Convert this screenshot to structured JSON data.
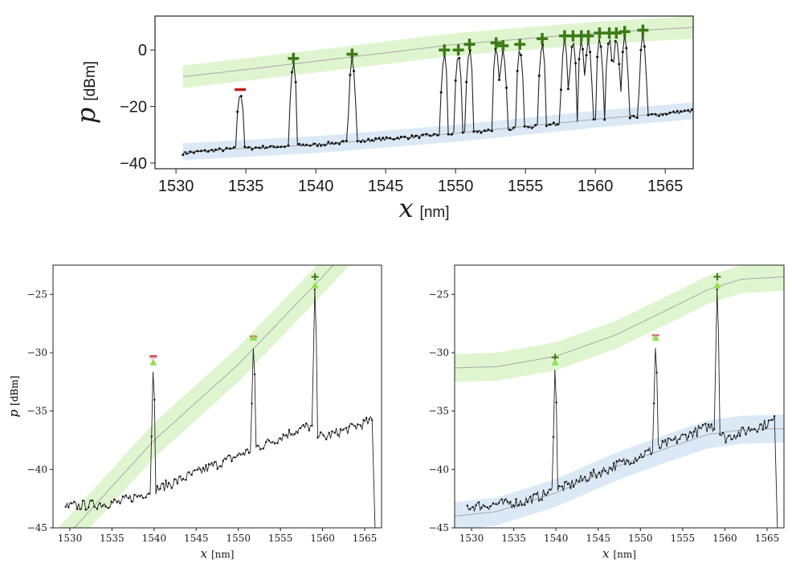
{
  "chart_data": [
    {
      "type": "line",
      "panel": "top",
      "xlabel_symbol": "x",
      "xlabel_unit": "[nm]",
      "ylabel_symbol": "p",
      "ylabel_unit": "[dBm]",
      "xlim": [
        1528.5,
        1567
      ],
      "ylim": [
        -42,
        12
      ],
      "xticks": [
        1530,
        1535,
        1540,
        1545,
        1550,
        1555,
        1560,
        1565
      ],
      "yticks": [
        0,
        -20,
        -40
      ],
      "grid": false,
      "upper_band": {
        "x": [
          1530.5,
          1540,
          1550,
          1560,
          1567
        ],
        "center": [
          -9.5,
          -4,
          2,
          6,
          8
        ],
        "halfwidth": 4,
        "color": "#dff5cf"
      },
      "lower_band": {
        "x": [
          1530.5,
          1540,
          1550,
          1560,
          1567
        ],
        "center": [
          -36,
          -33.5,
          -29.5,
          -24.5,
          -21.5
        ],
        "halfwidth": 3,
        "color": "#dbe9f7"
      },
      "baseline": {
        "x": [
          1530.5,
          1534,
          1540,
          1550,
          1560,
          1567
        ],
        "y": [
          -36.5,
          -35,
          -33.5,
          -29.5,
          -25,
          -21.5
        ]
      },
      "peaks": [
        {
          "x": 1534.6,
          "y": -14,
          "marker": "minus",
          "color": "#c0201e"
        },
        {
          "x": 1538.4,
          "y": -3,
          "marker": "plus",
          "color": "#3b7a17"
        },
        {
          "x": 1542.6,
          "y": -1.5,
          "marker": "plus",
          "color": "#3b7a17"
        },
        {
          "x": 1549.2,
          "y": 0,
          "marker": "plus",
          "color": "#3b7a17"
        },
        {
          "x": 1550.2,
          "y": 0,
          "marker": "plus",
          "color": "#3b7a17"
        },
        {
          "x": 1551.0,
          "y": 2,
          "marker": "plus",
          "color": "#3b7a17"
        },
        {
          "x": 1552.9,
          "y": 2.5,
          "marker": "plus",
          "color": "#3b7a17"
        },
        {
          "x": 1553.4,
          "y": 1.5,
          "marker": "plus",
          "color": "#3b7a17"
        },
        {
          "x": 1554.6,
          "y": 2,
          "marker": "plus",
          "color": "#3b7a17"
        },
        {
          "x": 1556.2,
          "y": 4,
          "marker": "plus",
          "color": "#3b7a17"
        },
        {
          "x": 1557.8,
          "y": 5,
          "marker": "plus",
          "color": "#3b7a17"
        },
        {
          "x": 1558.4,
          "y": 5,
          "marker": "plus",
          "color": "#3b7a17"
        },
        {
          "x": 1559.0,
          "y": 5,
          "marker": "plus",
          "color": "#3b7a17"
        },
        {
          "x": 1559.5,
          "y": 5,
          "marker": "plus",
          "color": "#3b7a17"
        },
        {
          "x": 1560.3,
          "y": 6,
          "marker": "plus",
          "color": "#3b7a17"
        },
        {
          "x": 1561.0,
          "y": 6,
          "marker": "plus",
          "color": "#3b7a17"
        },
        {
          "x": 1561.5,
          "y": 6,
          "marker": "plus",
          "color": "#3b7a17"
        },
        {
          "x": 1562.1,
          "y": 6.5,
          "marker": "plus",
          "color": "#3b7a17"
        },
        {
          "x": 1563.4,
          "y": 7,
          "marker": "plus",
          "color": "#3b7a17"
        }
      ]
    },
    {
      "type": "line",
      "panel": "bottom-left",
      "xlabel_symbol": "x",
      "xlabel_unit": "[nm]",
      "ylabel_symbol": "p",
      "ylabel_unit": "[dBm]",
      "xlim": [
        1528,
        1567
      ],
      "ylim": [
        -45,
        -22.5
      ],
      "xticks": [
        1530,
        1535,
        1540,
        1545,
        1550,
        1555,
        1560,
        1565
      ],
      "yticks": [
        -25,
        -30,
        -35,
        -40,
        -45
      ],
      "grid": false,
      "upper_band": {
        "x": [
          1528,
          1540,
          1550,
          1560,
          1567
        ],
        "center": [
          -47,
          -37.5,
          -31,
          -23.5,
          -18
        ],
        "halfwidth": 1.5,
        "color": "#dff5cf"
      },
      "baseline": {
        "x": [
          1529.5,
          1536,
          1541,
          1550,
          1557,
          1558.5,
          1560,
          1566
        ],
        "y": [
          -43.2,
          -42.8,
          -41.5,
          -38.8,
          -36.6,
          -36.3,
          -37.3,
          -35.8
        ]
      },
      "end_drop": {
        "x": 1566.3,
        "y": -45
      },
      "peaks": [
        {
          "x": 1539.9,
          "y": -30.3,
          "marker": "minus",
          "color": "#c0201e",
          "tri_y": -30.8
        },
        {
          "x": 1551.8,
          "y": -28.6,
          "marker": "minus",
          "color": "#d9534f",
          "tri_y": -28.7
        },
        {
          "x": 1559.1,
          "y": -23.5,
          "marker": "plus",
          "color": "#3b7a17",
          "tri_y": -24.2
        }
      ]
    },
    {
      "type": "line",
      "panel": "bottom-right",
      "xlabel_symbol": "x",
      "xlabel_unit": "[nm]",
      "ylabel_symbol": "p",
      "ylabel_unit": "[dBm]",
      "xlim": [
        1528,
        1567
      ],
      "ylim": [
        -45,
        -22.5
      ],
      "xticks": [
        1530,
        1535,
        1540,
        1545,
        1550,
        1555,
        1560,
        1565
      ],
      "yticks": [
        -25,
        -30,
        -35,
        -40,
        -45
      ],
      "grid": false,
      "upper_band": {
        "x": [
          1528,
          1533,
          1540,
          1547,
          1553,
          1558,
          1562,
          1567
        ],
        "center": [
          -31.3,
          -31.2,
          -30.3,
          -28.5,
          -26.4,
          -24.6,
          -23.7,
          -23.5
        ],
        "halfwidth": 1.2,
        "color": "#dff5cf"
      },
      "lower_band": {
        "x": [
          1528,
          1533,
          1540,
          1547,
          1553,
          1558,
          1562,
          1567
        ],
        "center": [
          -44.0,
          -43.6,
          -42.0,
          -39.8,
          -38.2,
          -37.0,
          -36.6,
          -36.5
        ],
        "halfwidth": 1.2,
        "color": "#dbe9f7"
      },
      "baseline": {
        "x": [
          1529.5,
          1536,
          1541,
          1550,
          1557,
          1558.5,
          1560,
          1566
        ],
        "y": [
          -43.2,
          -42.8,
          -41.5,
          -38.8,
          -36.6,
          -36.3,
          -37.3,
          -35.8
        ]
      },
      "end_drop": {
        "x": 1566.3,
        "y": -45
      },
      "peaks": [
        {
          "x": 1539.9,
          "y": -30.4,
          "marker": "plus",
          "color": "#3b7a17",
          "tri_y": -30.8
        },
        {
          "x": 1551.8,
          "y": -28.5,
          "marker": "minus",
          "color": "#e04e4e",
          "tri_y": -28.7
        },
        {
          "x": 1559.1,
          "y": -23.5,
          "marker": "plus",
          "color": "#3b7a17",
          "tri_y": -24.2
        }
      ]
    }
  ]
}
